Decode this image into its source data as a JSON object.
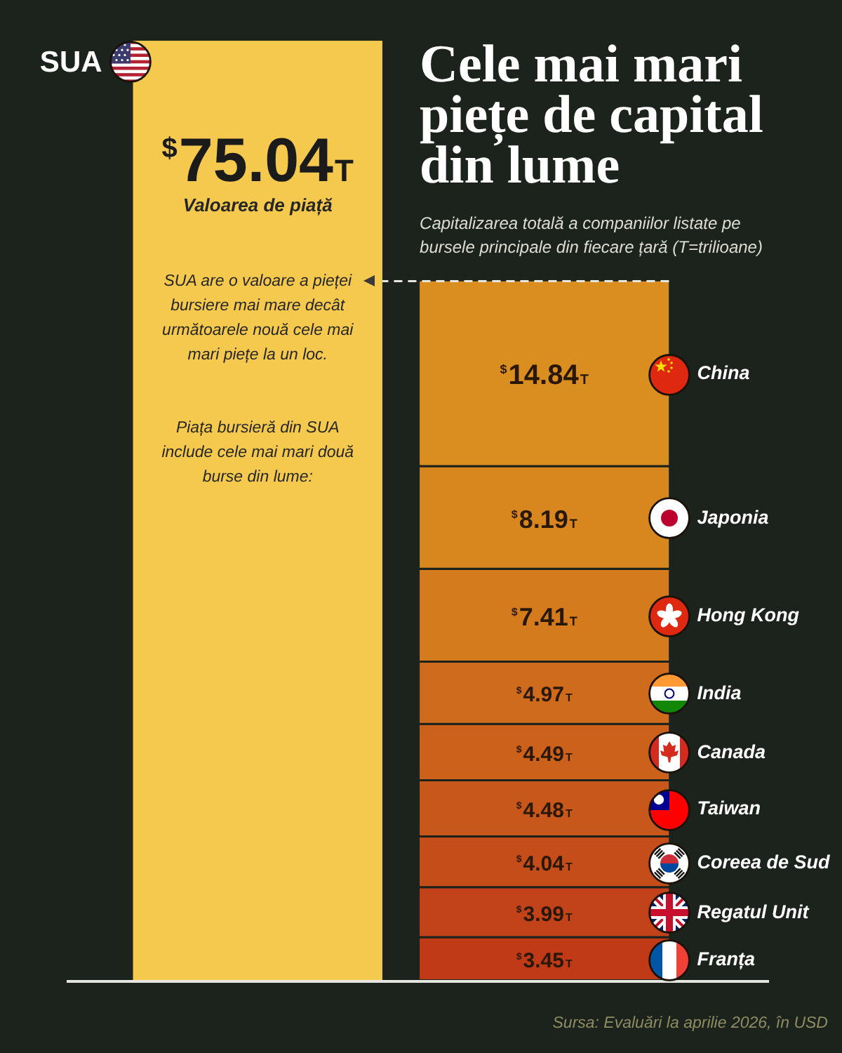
{
  "chart_data": {
    "type": "bar",
    "title": "Cele mai mari piețe de capital din lume",
    "subtitle": "Capitalizarea totală a companiilor listate pe bursele principale din fiecare țară (T=trilioane)",
    "categories": [
      null,
      null
    ],
    "stacked": true,
    "legend": false,
    "tick_labels": false,
    "series": [
      {
        "name": "SUA",
        "color": "#f5c94e",
        "values": [
          75.04,
          null
        ],
        "value_labels": [
          "$75.04T",
          null
        ]
      },
      {
        "name": "Franța",
        "color": "#c03a18",
        "values": [
          null,
          3.45
        ],
        "value_labels": [
          null,
          "$3.45T"
        ]
      },
      {
        "name": "Regatul Unit",
        "color": "#c2421a",
        "values": [
          null,
          3.99
        ],
        "value_labels": [
          null,
          "$3.99T"
        ]
      },
      {
        "name": "Coreea de Sud",
        "color": "#c54d1a",
        "values": [
          null,
          4.04
        ],
        "value_labels": [
          null,
          "$4.04T"
        ]
      },
      {
        "name": "Taiwan",
        "color": "#c8571b",
        "values": [
          null,
          4.48
        ],
        "value_labels": [
          null,
          "$4.48T"
        ]
      },
      {
        "name": "Canada",
        "color": "#cb611b",
        "values": [
          null,
          4.49
        ],
        "value_labels": [
          null,
          "$4.49T"
        ]
      },
      {
        "name": "India",
        "color": "#cf6b1c",
        "values": [
          null,
          4.97
        ],
        "value_labels": [
          null,
          "$4.97T"
        ]
      },
      {
        "name": "Hong Kong",
        "color": "#d47b1d",
        "values": [
          null,
          7.41
        ],
        "value_labels": [
          null,
          "$7.41T"
        ]
      },
      {
        "name": "Japonia",
        "color": "#d8871e",
        "values": [
          null,
          8.19
        ],
        "value_labels": [
          null,
          "$8.19T"
        ]
      },
      {
        "name": "China",
        "color": "#da8e1f",
        "values": [
          null,
          14.84
        ],
        "value_labels": [
          null,
          "$14.84T"
        ]
      }
    ],
    "ref_lines": [
      {
        "axis": "y",
        "value": 55.86,
        "label": "SUA are o valoare a pieței bursiere mai mare decât următoarele nouă cele mai mari piețe la un loc.",
        "color": "#e6e6e0",
        "line_style": "dashed"
      }
    ],
    "annotations": [
      "Valoarea de piață",
      "Piața bursieră din SUA include cele mai mari două burse din lume:",
      "Sursa: Evaluări la aprilie 2026, în USD"
    ]
  }
}
